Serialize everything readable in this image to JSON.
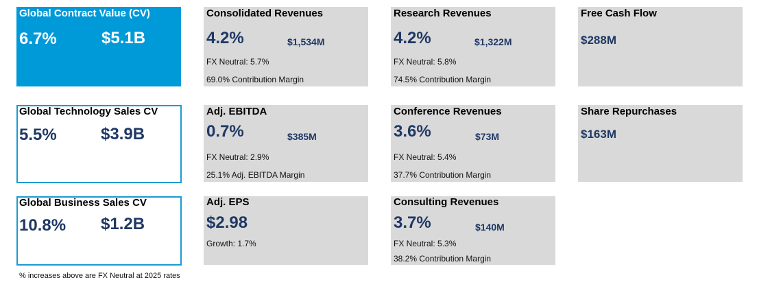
{
  "cv": {
    "global": {
      "title": "Global Contract Value (CV)",
      "pct": "6.7%",
      "amount": "$5.1B"
    },
    "technology": {
      "title": "Global Technology Sales CV",
      "pct": "5.5%",
      "amount": "$3.9B"
    },
    "business": {
      "title": "Global Business Sales CV",
      "pct": "10.8%",
      "amount": "$1.2B"
    }
  },
  "consolidated": {
    "title": "Consolidated Revenues",
    "pct": "4.2%",
    "amount": "$1,534M",
    "fx": "FX Neutral: 5.7%",
    "margin": "69.0% Contribution Margin"
  },
  "research": {
    "title": "Research Revenues",
    "pct": "4.2%",
    "amount": "$1,322M",
    "fx": "FX Neutral: 5.8%",
    "margin": "74.5% Contribution Margin"
  },
  "fcf": {
    "title": "Free Cash Flow",
    "amount": "$288M"
  },
  "ebitda": {
    "title": "Adj. EBITDA",
    "pct": "0.7%",
    "amount": "$385M",
    "fx": "FX Neutral: 2.9%",
    "margin": "25.1% Adj. EBITDA Margin"
  },
  "conference": {
    "title": "Conference Revenues",
    "pct": "3.6%",
    "amount": "$73M",
    "fx": "FX Neutral: 5.4%",
    "margin": "37.7% Contribution Margin"
  },
  "repurchases": {
    "title": "Share Repurchases",
    "amount": "$163M"
  },
  "eps": {
    "title": "Adj. EPS",
    "value": "$2.98",
    "growth": "Growth: 1.7%"
  },
  "consulting": {
    "title": "Consulting Revenues",
    "pct": "3.7%",
    "amount": "$140M",
    "fx": "FX Neutral: 5.3%",
    "margin": "38.2% Contribution Margin"
  },
  "footnote": "% increases above are FX Neutral at 2025 rates",
  "colors": {
    "blue_fill": "#009ad9",
    "blue_outline": "#1a9ad1",
    "tile_gray": "#d9d9d9",
    "navy": "#1f3864"
  }
}
